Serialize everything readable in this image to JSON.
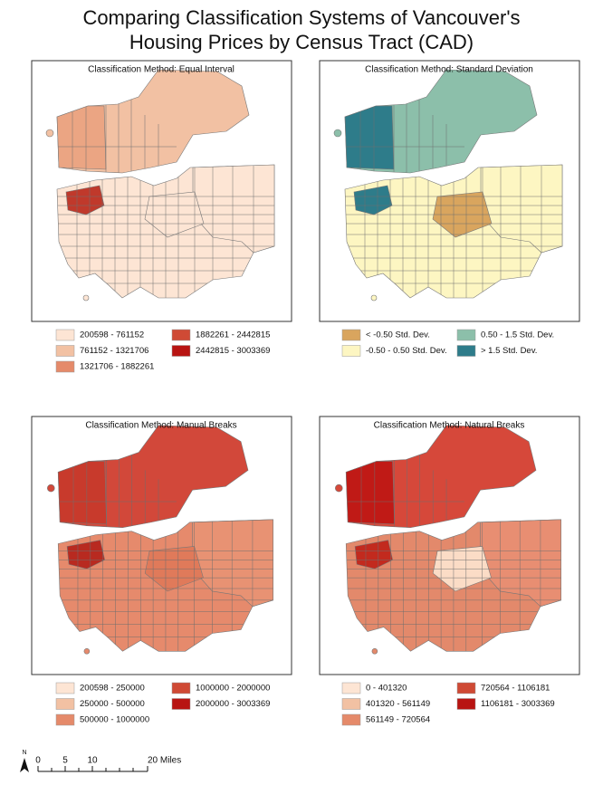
{
  "title": [
    "Comparing Classification Systems of Vancouver's",
    "Housing Prices by Census Tract (CAD)"
  ],
  "panels": [
    {
      "title": "Classification Method: Equal Interval",
      "legend": [
        {
          "label": "200598 - 761152",
          "color": "#fde5d4"
        },
        {
          "label": "761152 - 1321706",
          "color": "#f2c1a3"
        },
        {
          "label": "1321706 - 1882261",
          "color": "#e58a6a"
        },
        {
          "label": "1882261 - 2442815",
          "color": "#cf4a35"
        },
        {
          "label": "2442815 - 3003369",
          "color": "#b81412"
        }
      ]
    },
    {
      "title": "Classification Method: Standard Deviation",
      "legend": [
        {
          "label": "< -0.50 Std. Dev.",
          "color": "#d9a55e"
        },
        {
          "label": "-0.50 - 0.50 Std. Dev.",
          "color": "#fdf6c2"
        },
        {
          "label": "0.50 - 1.5 Std. Dev.",
          "color": "#8cbfaa"
        },
        {
          "label": "> 1.5 Std. Dev.",
          "color": "#2e7c8a"
        }
      ]
    },
    {
      "title": "Classification Method: Manual Breaks",
      "legend": [
        {
          "label": "200598 - 250000",
          "color": "#fde5d4"
        },
        {
          "label": "250000 - 500000",
          "color": "#f2c1a3"
        },
        {
          "label": "500000 - 1000000",
          "color": "#e58a6a"
        },
        {
          "label": "1000000 - 2000000",
          "color": "#cf4a35"
        },
        {
          "label": "2000000 - 3003369",
          "color": "#b81412"
        }
      ]
    },
    {
      "title": "Classification Method: Natural Breaks",
      "legend": [
        {
          "label": "0 - 401320",
          "color": "#fde5d4"
        },
        {
          "label": "401320 - 561149",
          "color": "#f2c1a3"
        },
        {
          "label": "561149 - 720564",
          "color": "#e58a6a"
        },
        {
          "label": "720564 - 1106181",
          "color": "#cf4a35"
        },
        {
          "label": "1106181 - 3003369",
          "color": "#b81412"
        }
      ]
    }
  ],
  "north_arrow": "N",
  "scale_bar": [
    "0",
    "5",
    "10",
    "20 Miles"
  ]
}
